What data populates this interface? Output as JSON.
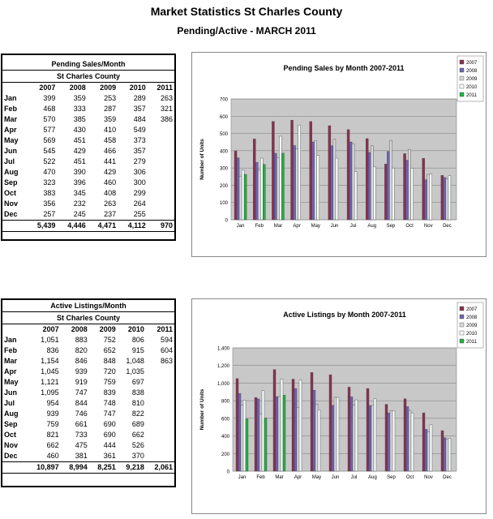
{
  "header": {
    "title": "Market Statistics St Charles County",
    "subtitle": "Pending/Active - MARCH 2011"
  },
  "table1": {
    "title": "Pending Sales/Month",
    "subtitle": "St Charles County",
    "columns": [
      "2007",
      "2008",
      "2009",
      "2010",
      "2011"
    ],
    "rows": [
      {
        "m": "Jan",
        "v": [
          "399",
          "359",
          "253",
          "289",
          "263"
        ]
      },
      {
        "m": "Feb",
        "v": [
          "468",
          "333",
          "287",
          "357",
          "321"
        ]
      },
      {
        "m": "Mar",
        "v": [
          "570",
          "385",
          "359",
          "484",
          "386"
        ]
      },
      {
        "m": "Apr",
        "v": [
          "577",
          "430",
          "410",
          "549",
          ""
        ]
      },
      {
        "m": "May",
        "v": [
          "569",
          "451",
          "458",
          "373",
          ""
        ]
      },
      {
        "m": "Jun",
        "v": [
          "545",
          "429",
          "466",
          "357",
          ""
        ]
      },
      {
        "m": "Jul",
        "v": [
          "522",
          "451",
          "441",
          "279",
          ""
        ]
      },
      {
        "m": "Aug",
        "v": [
          "470",
          "390",
          "429",
          "306",
          ""
        ]
      },
      {
        "m": "Sep",
        "v": [
          "323",
          "396",
          "460",
          "300",
          ""
        ]
      },
      {
        "m": "Oct",
        "v": [
          "383",
          "345",
          "408",
          "299",
          ""
        ]
      },
      {
        "m": "Nov",
        "v": [
          "356",
          "232",
          "263",
          "264",
          ""
        ]
      },
      {
        "m": "Dec",
        "v": [
          "257",
          "245",
          "237",
          "255",
          ""
        ]
      }
    ],
    "totals": [
      "5,439",
      "4,446",
      "4,471",
      "4,112",
      "970"
    ]
  },
  "table2": {
    "title": "Active Listings/Month",
    "subtitle": "St Charles County",
    "columns": [
      "2007",
      "2008",
      "2009",
      "2010",
      "2011"
    ],
    "rows": [
      {
        "m": "Jan",
        "v": [
          "1,051",
          "883",
          "752",
          "806",
          "594"
        ]
      },
      {
        "m": "Feb",
        "v": [
          "836",
          "820",
          "652",
          "915",
          "604"
        ]
      },
      {
        "m": "Mar",
        "v": [
          "1,154",
          "846",
          "848",
          "1,048",
          "863"
        ]
      },
      {
        "m": "Apr",
        "v": [
          "1,045",
          "939",
          "720",
          "1,035",
          ""
        ]
      },
      {
        "m": "May",
        "v": [
          "1,121",
          "919",
          "759",
          "697",
          ""
        ]
      },
      {
        "m": "Jun",
        "v": [
          "1,095",
          "747",
          "839",
          "838",
          ""
        ]
      },
      {
        "m": "Jul",
        "v": [
          "954",
          "844",
          "748",
          "810",
          ""
        ]
      },
      {
        "m": "Aug",
        "v": [
          "939",
          "746",
          "747",
          "822",
          ""
        ]
      },
      {
        "m": "Sep",
        "v": [
          "759",
          "661",
          "690",
          "689",
          ""
        ]
      },
      {
        "m": "Oct",
        "v": [
          "821",
          "733",
          "690",
          "662",
          ""
        ]
      },
      {
        "m": "Nov",
        "v": [
          "662",
          "475",
          "444",
          "526",
          ""
        ]
      },
      {
        "m": "Dec",
        "v": [
          "460",
          "381",
          "361",
          "370",
          ""
        ]
      }
    ],
    "totals": [
      "10,897",
      "8,994",
      "8,251",
      "9,218",
      "2,061"
    ]
  },
  "colors": {
    "2007": "#8b2f4f",
    "2008": "#6b64b8",
    "2009": "#d8d8d8",
    "2010": "#f4fbf8",
    "2011": "#1fb23c",
    "plot_bg": "#c8c8c8"
  },
  "chart_data": [
    {
      "type": "bar",
      "title": "Pending Sales by Month 2007-2011",
      "ylabel": "Number of Units",
      "xlabel": "",
      "ylim": [
        0,
        700
      ],
      "yticks": [
        0,
        100,
        200,
        300,
        400,
        500,
        600,
        700
      ],
      "ytick_labels": [
        "0",
        "100",
        "200",
        "300",
        "400",
        "500",
        "600",
        "700"
      ],
      "categories": [
        "Jan",
        "Feb",
        "Mar",
        "Apr",
        "May",
        "Jun",
        "Jul",
        "Aug",
        "Sep",
        "Oct",
        "Nov",
        "Dec"
      ],
      "legend_position": "top-right",
      "series": [
        {
          "name": "2007",
          "values": [
            399,
            468,
            570,
            577,
            569,
            545,
            522,
            470,
            323,
            383,
            356,
            257
          ]
        },
        {
          "name": "2008",
          "values": [
            359,
            333,
            385,
            430,
            451,
            429,
            451,
            390,
            396,
            345,
            232,
            245
          ]
        },
        {
          "name": "2009",
          "values": [
            253,
            287,
            359,
            410,
            458,
            466,
            441,
            429,
            460,
            408,
            263,
            237
          ]
        },
        {
          "name": "2010",
          "values": [
            289,
            357,
            484,
            549,
            373,
            357,
            279,
            306,
            300,
            299,
            264,
            255
          ]
        },
        {
          "name": "2011",
          "values": [
            263,
            321,
            386,
            null,
            null,
            null,
            null,
            null,
            null,
            null,
            null,
            null
          ]
        }
      ]
    },
    {
      "type": "bar",
      "title": "Active Listings by Month 2007-2011",
      "ylabel": "Number of Units",
      "xlabel": "",
      "ylim": [
        0,
        1400
      ],
      "yticks": [
        0,
        200,
        400,
        600,
        800,
        1000,
        1200,
        1400
      ],
      "ytick_labels": [
        "0",
        "200",
        "400",
        "600",
        "800",
        "1,000",
        "1,200",
        "1,400"
      ],
      "categories": [
        "Jan",
        "Feb",
        "Mar",
        "Apr",
        "May",
        "Jun",
        "Jul",
        "Aug",
        "Sep",
        "Oct",
        "Nov",
        "Dec"
      ],
      "legend_position": "top-right",
      "series": [
        {
          "name": "2007",
          "values": [
            1051,
            836,
            1154,
            1045,
            1121,
            1095,
            954,
            939,
            759,
            821,
            662,
            460
          ]
        },
        {
          "name": "2008",
          "values": [
            883,
            820,
            846,
            939,
            919,
            747,
            844,
            746,
            661,
            733,
            475,
            381
          ]
        },
        {
          "name": "2009",
          "values": [
            752,
            652,
            848,
            720,
            759,
            839,
            748,
            747,
            690,
            690,
            444,
            361
          ]
        },
        {
          "name": "2010",
          "values": [
            806,
            915,
            1048,
            1035,
            697,
            838,
            810,
            822,
            689,
            662,
            526,
            370
          ]
        },
        {
          "name": "2011",
          "values": [
            594,
            604,
            863,
            null,
            null,
            null,
            null,
            null,
            null,
            null,
            null,
            null
          ]
        }
      ]
    }
  ]
}
